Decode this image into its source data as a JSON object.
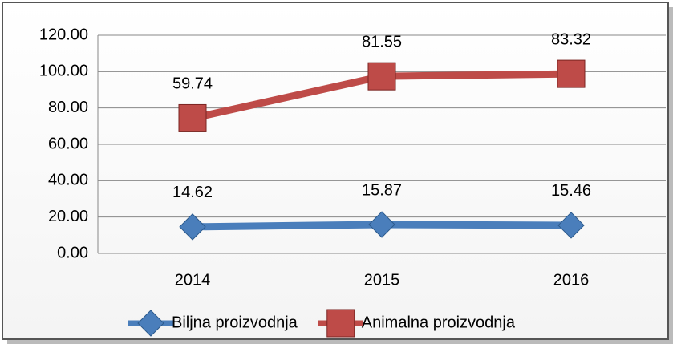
{
  "chart_data": {
    "type": "stacked_line",
    "categories": [
      "2014",
      "2015",
      "2016"
    ],
    "series": [
      {
        "name": "Biljna proizvodnja",
        "color": "#4a7ebb",
        "marker": "diamond",
        "values": [
          14.62,
          15.87,
          15.46
        ]
      },
      {
        "name": "Animalna proizvodnja",
        "color": "#be4b48",
        "marker": "square",
        "values": [
          59.74,
          81.55,
          83.32
        ]
      }
    ],
    "ylim": [
      0,
      120
    ],
    "yticks": [
      {
        "value": 0,
        "label": "0.00"
      },
      {
        "value": 20,
        "label": "20.00"
      },
      {
        "value": 40,
        "label": "40.00"
      },
      {
        "value": 60,
        "label": "60.00"
      },
      {
        "value": 80,
        "label": "80.00"
      },
      {
        "value": 100,
        "label": "100.00"
      },
      {
        "value": 120,
        "label": "120.00"
      }
    ],
    "grid": true,
    "legend": "bottom"
  }
}
